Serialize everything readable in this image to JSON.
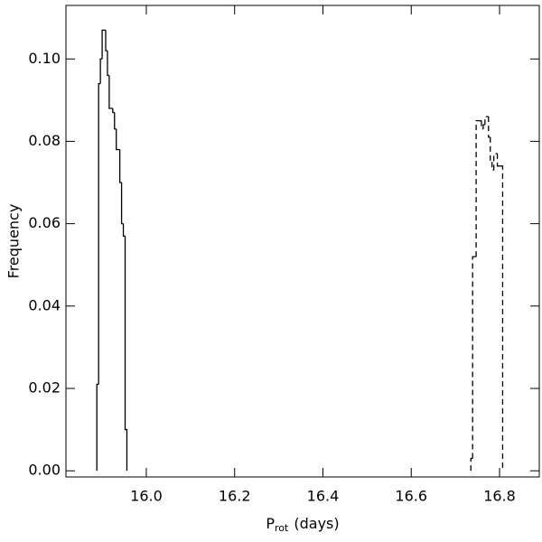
{
  "chart_data": {
    "type": "histogram",
    "ylabel": "Frequency",
    "xlabel": {
      "main": "P",
      "sub": "rot",
      "unit": "(days)"
    },
    "xlim": [
      15.818,
      16.89
    ],
    "ylim": [
      -0.0015,
      0.113
    ],
    "xticks": [
      {
        "value": 16.0,
        "label": "16.0"
      },
      16.2,
      16.4,
      16.6,
      16.8
    ],
    "yticks": [
      {
        "value": 0,
        "label": "0.00"
      },
      0.02,
      0.04,
      0.06,
      0.08,
      {
        "value": 0.1,
        "label": "0.10"
      }
    ],
    "series": [
      {
        "color": "#000000",
        "dash": false,
        "bins": [
          15.888,
          15.892,
          15.896,
          15.9,
          15.904,
          15.908,
          15.912,
          15.916,
          15.92,
          15.924,
          15.928,
          15.932,
          15.936,
          15.94,
          15.944,
          15.948,
          15.952,
          15.956
        ],
        "values": [
          0.021,
          0.094,
          0.1,
          0.107,
          0.107,
          0.102,
          0.096,
          0.088,
          0.088,
          0.087,
          0.083,
          0.078,
          0.078,
          0.07,
          0.06,
          0.057,
          0.01
        ]
      },
      {
        "color": "#000000",
        "dash": true,
        "bins": [
          16.735,
          16.739,
          16.743,
          16.747,
          16.751,
          16.755,
          16.759,
          16.763,
          16.767,
          16.771,
          16.775,
          16.779,
          16.783,
          16.787,
          16.791,
          16.795,
          16.799,
          16.803,
          16.807
        ],
        "values": [
          0.003,
          0.052,
          0.052,
          0.085,
          0.085,
          0.085,
          0.083,
          0.084,
          0.086,
          0.086,
          0.081,
          0.075,
          0.073,
          0.077,
          0.077,
          0.074,
          0.074,
          0.074
        ]
      }
    ]
  }
}
